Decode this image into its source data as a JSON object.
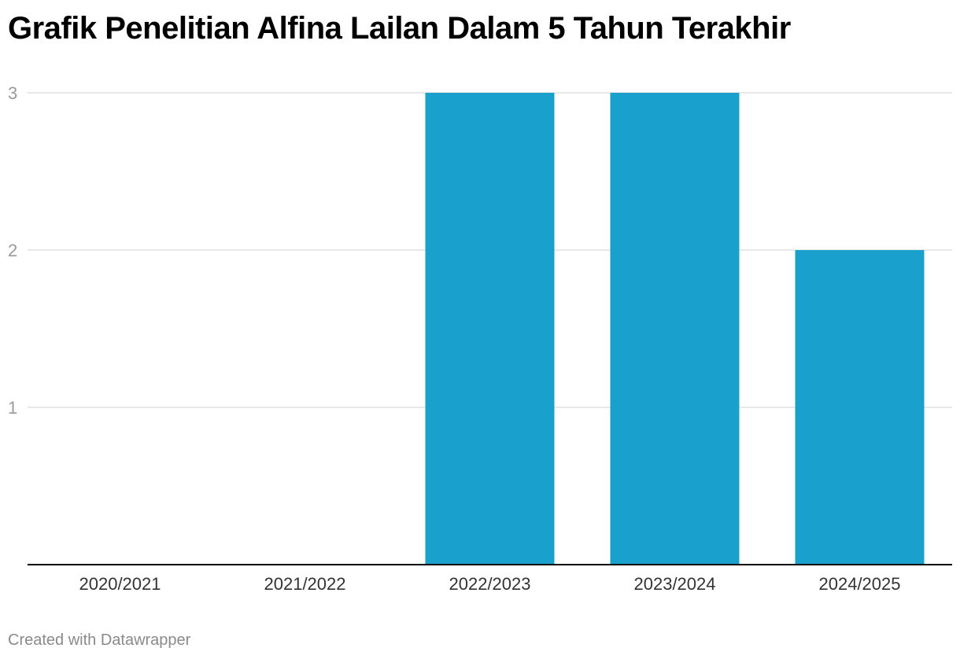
{
  "chart_data": {
    "type": "bar",
    "title": "Grafik Penelitian Alfina Lailan Dalam 5 Tahun Terakhir",
    "xlabel": "",
    "ylabel": "",
    "categories": [
      "2020/2021",
      "2021/2022",
      "2022/2023",
      "2023/2024",
      "2024/2025"
    ],
    "values": [
      0,
      0,
      3,
      3,
      2
    ],
    "ylim": [
      0,
      3
    ],
    "yticks": [
      1,
      2,
      3
    ],
    "grid": true,
    "legend": "none",
    "colors": {
      "bar": "#1aa0cd",
      "grid": "#e0e0e0",
      "axis": "#000000",
      "tick_label": "#9a9a9a",
      "category_label": "#333333"
    }
  },
  "footer": {
    "credit": "Created with Datawrapper"
  }
}
